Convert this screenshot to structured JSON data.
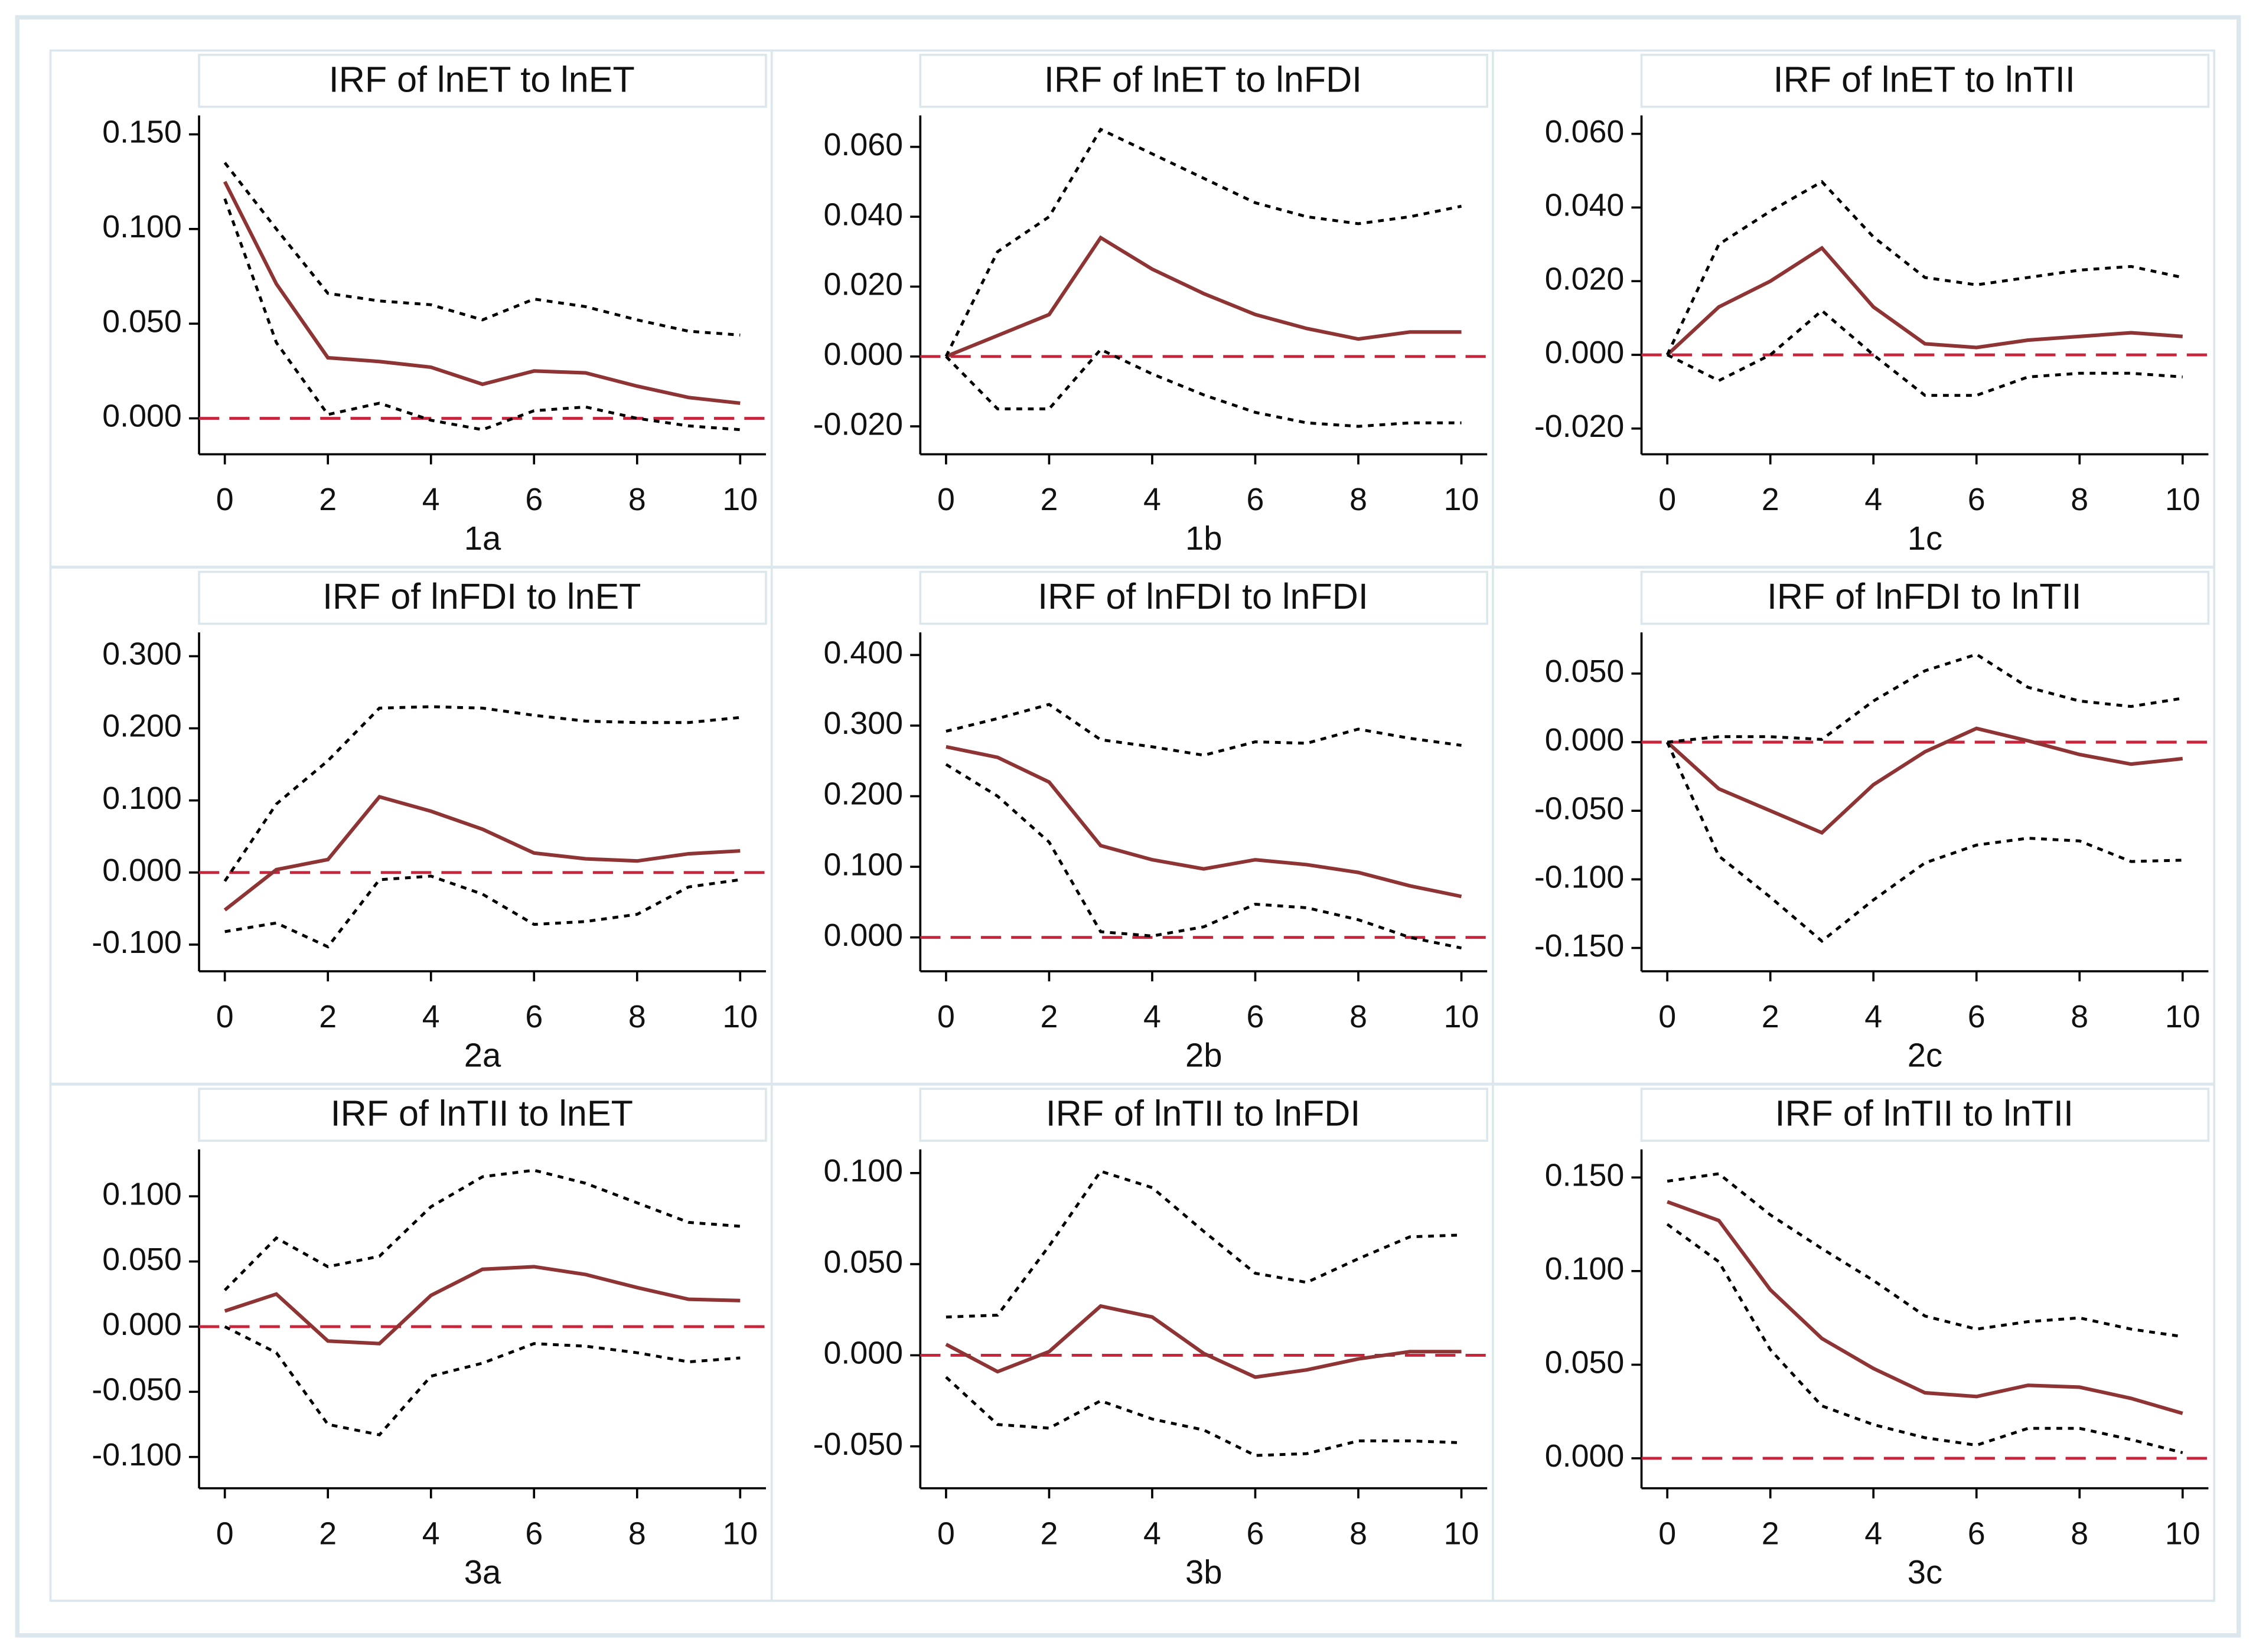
{
  "chart_data": [
    {
      "type": "line",
      "title": "IRF of lnET to lnET",
      "xlabel": "1a",
      "x": [
        0,
        1,
        2,
        3,
        4,
        5,
        6,
        7,
        8,
        9,
        10
      ],
      "xlim": [
        -0.5,
        10.5
      ],
      "xticks": [
        0,
        2,
        4,
        6,
        8,
        10
      ],
      "ylim": [
        -0.019,
        0.16
      ],
      "yticks": [
        {
          "value": 0,
          "label": "0.000"
        },
        {
          "value": 0.05,
          "label": "0.050"
        },
        {
          "value": 0.1,
          "label": "0.100"
        },
        {
          "value": 0.15,
          "label": "0.150"
        }
      ],
      "hline": {
        "value": 0,
        "color": "#c8243c",
        "style": "dashed"
      },
      "series": [
        {
          "color": "#8f3434",
          "style": "solid",
          "values": [
            0.125,
            0.071,
            0.032,
            0.03,
            0.027,
            0.018,
            0.025,
            0.024,
            0.017,
            0.011,
            0.008
          ]
        },
        {
          "color": "#000000",
          "style": "dotted",
          "values": [
            0.135,
            0.1,
            0.066,
            0.062,
            0.06,
            0.052,
            0.063,
            0.059,
            0.052,
            0.046,
            0.044
          ]
        },
        {
          "color": "#000000",
          "style": "dotted",
          "values": [
            0.116,
            0.04,
            0.002,
            0.008,
            -0.001,
            -0.006,
            0.004,
            0.006,
            0.0,
            -0.004,
            -0.006
          ]
        }
      ]
    },
    {
      "type": "line",
      "title": "IRF of lnET to lnFDI",
      "xlabel": "1b",
      "x": [
        0,
        1,
        2,
        3,
        4,
        5,
        6,
        7,
        8,
        9,
        10
      ],
      "xlim": [
        -0.5,
        10.5
      ],
      "xticks": [
        0,
        2,
        4,
        6,
        8,
        10
      ],
      "ylim": [
        -0.028,
        0.069
      ],
      "yticks": [
        {
          "value": -0.02,
          "label": "-0.020"
        },
        {
          "value": 0,
          "label": "0.000"
        },
        {
          "value": 0.02,
          "label": "0.020"
        },
        {
          "value": 0.04,
          "label": "0.040"
        },
        {
          "value": 0.06,
          "label": "0.060"
        }
      ],
      "hline": {
        "value": 0,
        "color": "#c8243c",
        "style": "dashed"
      },
      "series": [
        {
          "color": "#8f3434",
          "style": "solid",
          "values": [
            0,
            0.006,
            0.012,
            0.034,
            0.025,
            0.018,
            0.012,
            0.008,
            0.005,
            0.007,
            0.007
          ]
        },
        {
          "color": "#000000",
          "style": "dotted",
          "values": [
            0,
            0.03,
            0.04,
            0.065,
            0.058,
            0.051,
            0.044,
            0.04,
            0.038,
            0.04,
            0.043
          ]
        },
        {
          "color": "#000000",
          "style": "dotted",
          "values": [
            0,
            -0.015,
            -0.015,
            0.002,
            -0.005,
            -0.011,
            -0.016,
            -0.019,
            -0.02,
            -0.019,
            -0.019
          ]
        }
      ]
    },
    {
      "type": "line",
      "title": "IRF of lnET to lnTII",
      "xlabel": "1c",
      "x": [
        0,
        1,
        2,
        3,
        4,
        5,
        6,
        7,
        8,
        9,
        10
      ],
      "xlim": [
        -0.5,
        10.5
      ],
      "xticks": [
        0,
        2,
        4,
        6,
        8,
        10
      ],
      "ylim": [
        -0.027,
        0.065
      ],
      "yticks": [
        {
          "value": -0.02,
          "label": "-0.020"
        },
        {
          "value": 0,
          "label": "0.000"
        },
        {
          "value": 0.02,
          "label": "0.020"
        },
        {
          "value": 0.04,
          "label": "0.040"
        },
        {
          "value": 0.06,
          "label": "0.060"
        }
      ],
      "hline": {
        "value": 0,
        "color": "#c8243c",
        "style": "dashed"
      },
      "series": [
        {
          "color": "#8f3434",
          "style": "solid",
          "values": [
            0,
            0.013,
            0.02,
            0.029,
            0.013,
            0.003,
            0.002,
            0.004,
            0.005,
            0.006,
            0.005
          ]
        },
        {
          "color": "#000000",
          "style": "dotted",
          "values": [
            0,
            0.03,
            0.039,
            0.047,
            0.032,
            0.021,
            0.019,
            0.021,
            0.023,
            0.024,
            0.021
          ]
        },
        {
          "color": "#000000",
          "style": "dotted",
          "values": [
            0,
            -0.007,
            0.0,
            0.012,
            0.0,
            -0.011,
            -0.011,
            -0.006,
            -0.005,
            -0.005,
            -0.006
          ]
        }
      ]
    },
    {
      "type": "line",
      "title": "IRF of lnFDI to lnET",
      "xlabel": "2a",
      "x": [
        0,
        1,
        2,
        3,
        4,
        5,
        6,
        7,
        8,
        9,
        10
      ],
      "xlim": [
        -0.5,
        10.5
      ],
      "xticks": [
        0,
        2,
        4,
        6,
        8,
        10
      ],
      "ylim": [
        -0.137,
        0.333
      ],
      "yticks": [
        {
          "value": -0.1,
          "label": "-0.100"
        },
        {
          "value": 0,
          "label": "0.000"
        },
        {
          "value": 0.1,
          "label": "0.100"
        },
        {
          "value": 0.2,
          "label": "0.200"
        },
        {
          "value": 0.3,
          "label": "0.300"
        }
      ],
      "hline": {
        "value": 0,
        "color": "#c8243c",
        "style": "dashed"
      },
      "series": [
        {
          "color": "#8f3434",
          "style": "solid",
          "values": [
            -0.052,
            0.004,
            0.018,
            0.105,
            0.085,
            0.06,
            0.027,
            0.019,
            0.016,
            0.026,
            0.03
          ]
        },
        {
          "color": "#000000",
          "style": "dotted",
          "values": [
            -0.012,
            0.095,
            0.155,
            0.228,
            0.23,
            0.228,
            0.218,
            0.21,
            0.208,
            0.208,
            0.215
          ]
        },
        {
          "color": "#000000",
          "style": "dotted",
          "values": [
            -0.082,
            -0.07,
            -0.103,
            -0.01,
            -0.005,
            -0.03,
            -0.072,
            -0.068,
            -0.058,
            -0.02,
            -0.01
          ]
        }
      ]
    },
    {
      "type": "line",
      "title": "IRF of lnFDI to lnFDI",
      "xlabel": "2b",
      "x": [
        0,
        1,
        2,
        3,
        4,
        5,
        6,
        7,
        8,
        9,
        10
      ],
      "xlim": [
        -0.5,
        10.5
      ],
      "xticks": [
        0,
        2,
        4,
        6,
        8,
        10
      ],
      "ylim": [
        -0.048,
        0.432
      ],
      "yticks": [
        {
          "value": 0,
          "label": "0.000"
        },
        {
          "value": 0.1,
          "label": "0.100"
        },
        {
          "value": 0.2,
          "label": "0.200"
        },
        {
          "value": 0.3,
          "label": "0.300"
        },
        {
          "value": 0.4,
          "label": "0.400"
        }
      ],
      "hline": {
        "value": 0,
        "color": "#c8243c",
        "style": "dashed"
      },
      "series": [
        {
          "color": "#8f3434",
          "style": "solid",
          "values": [
            0.27,
            0.255,
            0.22,
            0.13,
            0.11,
            0.097,
            0.11,
            0.103,
            0.092,
            0.073,
            0.058
          ]
        },
        {
          "color": "#000000",
          "style": "dotted",
          "values": [
            0.292,
            0.31,
            0.33,
            0.28,
            0.27,
            0.258,
            0.277,
            0.275,
            0.295,
            0.282,
            0.272
          ]
        },
        {
          "color": "#000000",
          "style": "dotted",
          "values": [
            0.245,
            0.2,
            0.135,
            0.008,
            0.002,
            0.015,
            0.047,
            0.042,
            0.025,
            0.0,
            -0.015
          ]
        }
      ]
    },
    {
      "type": "line",
      "title": "IRF of lnFDI to lnTII",
      "xlabel": "2c",
      "x": [
        0,
        1,
        2,
        3,
        4,
        5,
        6,
        7,
        8,
        9,
        10
      ],
      "xlim": [
        -0.5,
        10.5
      ],
      "xticks": [
        0,
        2,
        4,
        6,
        8,
        10
      ],
      "ylim": [
        -0.167,
        0.08
      ],
      "yticks": [
        {
          "value": -0.15,
          "label": "-0.150"
        },
        {
          "value": -0.1,
          "label": "-0.100"
        },
        {
          "value": -0.05,
          "label": "-0.050"
        },
        {
          "value": 0,
          "label": "0.000"
        },
        {
          "value": 0.05,
          "label": "0.050"
        }
      ],
      "hline": {
        "value": 0,
        "color": "#c8243c",
        "style": "dashed"
      },
      "series": [
        {
          "color": "#8f3434",
          "style": "solid",
          "values": [
            0,
            -0.034,
            -0.05,
            -0.066,
            -0.031,
            -0.007,
            0.01,
            0.001,
            -0.009,
            -0.016,
            -0.012
          ]
        },
        {
          "color": "#000000",
          "style": "dotted",
          "values": [
            0,
            0.004,
            0.004,
            0.002,
            0.03,
            0.052,
            0.064,
            0.04,
            0.03,
            0.026,
            0.032
          ]
        },
        {
          "color": "#000000",
          "style": "dotted",
          "values": [
            0,
            -0.083,
            -0.113,
            -0.145,
            -0.115,
            -0.088,
            -0.075,
            -0.07,
            -0.072,
            -0.087,
            -0.086
          ]
        }
      ]
    },
    {
      "type": "line",
      "title": "IRF of lnTII to lnET",
      "xlabel": "3a",
      "x": [
        0,
        1,
        2,
        3,
        4,
        5,
        6,
        7,
        8,
        9,
        10
      ],
      "xlim": [
        -0.5,
        10.5
      ],
      "xticks": [
        0,
        2,
        4,
        6,
        8,
        10
      ],
      "ylim": [
        -0.124,
        0.136
      ],
      "yticks": [
        {
          "value": -0.1,
          "label": "-0.100"
        },
        {
          "value": -0.05,
          "label": "-0.050"
        },
        {
          "value": 0,
          "label": "0.000"
        },
        {
          "value": 0.05,
          "label": "0.050"
        },
        {
          "value": 0.1,
          "label": "0.100"
        }
      ],
      "hline": {
        "value": 0,
        "color": "#c8243c",
        "style": "dashed"
      },
      "series": [
        {
          "color": "#8f3434",
          "style": "solid",
          "values": [
            0.012,
            0.025,
            -0.011,
            -0.013,
            0.024,
            0.044,
            0.046,
            0.04,
            0.03,
            0.021,
            0.02
          ]
        },
        {
          "color": "#000000",
          "style": "dotted",
          "values": [
            0.028,
            0.068,
            0.046,
            0.054,
            0.092,
            0.115,
            0.12,
            0.11,
            0.095,
            0.08,
            0.077
          ]
        },
        {
          "color": "#000000",
          "style": "dotted",
          "values": [
            0,
            -0.02,
            -0.075,
            -0.083,
            -0.038,
            -0.028,
            -0.013,
            -0.015,
            -0.02,
            -0.027,
            -0.024
          ]
        }
      ]
    },
    {
      "type": "line",
      "title": "IRF of lnTII to lnFDI",
      "xlabel": "3b",
      "x": [
        0,
        1,
        2,
        3,
        4,
        5,
        6,
        7,
        8,
        9,
        10
      ],
      "xlim": [
        -0.5,
        10.5
      ],
      "xticks": [
        0,
        2,
        4,
        6,
        8,
        10
      ],
      "ylim": [
        -0.073,
        0.113
      ],
      "yticks": [
        {
          "value": -0.05,
          "label": "-0.050"
        },
        {
          "value": 0,
          "label": "0.000"
        },
        {
          "value": 0.05,
          "label": "0.050"
        },
        {
          "value": 0.1,
          "label": "0.100"
        }
      ],
      "hline": {
        "value": 0,
        "color": "#c8243c",
        "style": "dashed"
      },
      "series": [
        {
          "color": "#8f3434",
          "style": "solid",
          "values": [
            0.006,
            -0.009,
            0.002,
            0.027,
            0.021,
            0.001,
            -0.012,
            -0.008,
            -0.002,
            0.002,
            0.002
          ]
        },
        {
          "color": "#000000",
          "style": "dotted",
          "values": [
            0.021,
            0.022,
            0.06,
            0.101,
            0.092,
            0.068,
            0.045,
            0.04,
            0.053,
            0.065,
            0.066
          ]
        },
        {
          "color": "#000000",
          "style": "dotted",
          "values": [
            -0.012,
            -0.038,
            -0.04,
            -0.025,
            -0.035,
            -0.041,
            -0.055,
            -0.054,
            -0.047,
            -0.047,
            -0.048
          ]
        }
      ]
    },
    {
      "type": "line",
      "title": "IRF of lnTII to lnTII",
      "xlabel": "3c",
      "x": [
        0,
        1,
        2,
        3,
        4,
        5,
        6,
        7,
        8,
        9,
        10
      ],
      "xlim": [
        -0.5,
        10.5
      ],
      "xticks": [
        0,
        2,
        4,
        6,
        8,
        10
      ],
      "ylim": [
        -0.016,
        0.165
      ],
      "yticks": [
        {
          "value": 0,
          "label": "0.000"
        },
        {
          "value": 0.05,
          "label": "0.050"
        },
        {
          "value": 0.1,
          "label": "0.100"
        },
        {
          "value": 0.15,
          "label": "0.150"
        }
      ],
      "hline": {
        "value": 0,
        "color": "#c8243c",
        "style": "dashed"
      },
      "series": [
        {
          "color": "#8f3434",
          "style": "solid",
          "values": [
            0.137,
            0.127,
            0.09,
            0.064,
            0.048,
            0.035,
            0.033,
            0.039,
            0.038,
            0.032,
            0.024
          ]
        },
        {
          "color": "#000000",
          "style": "dotted",
          "values": [
            0.148,
            0.152,
            0.13,
            0.112,
            0.095,
            0.076,
            0.069,
            0.073,
            0.075,
            0.069,
            0.065
          ]
        },
        {
          "color": "#000000",
          "style": "dotted",
          "values": [
            0.125,
            0.105,
            0.058,
            0.028,
            0.018,
            0.011,
            0.007,
            0.016,
            0.016,
            0.01,
            0.003
          ]
        }
      ]
    }
  ]
}
